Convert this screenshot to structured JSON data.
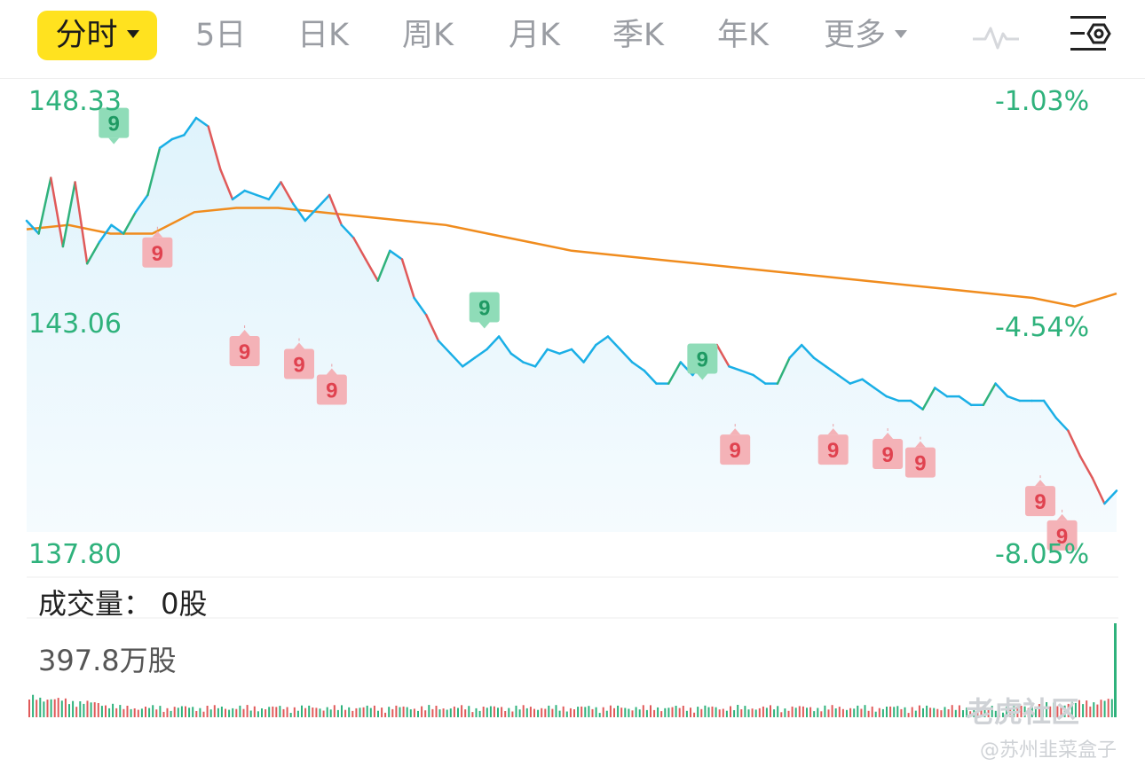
{
  "tabs": {
    "intraday": "分时",
    "five_day": "5日",
    "day_k": "日K",
    "week_k": "周K",
    "month_k": "月K",
    "season_k": "季K",
    "year_k": "年K",
    "more": "更多"
  },
  "icons": {
    "pulse": "pulse-icon",
    "settings": "settings-icon",
    "dropdown": "caret-down-icon"
  },
  "colors": {
    "accent": "#ffe21f",
    "price_line": "#1aafe6",
    "avg_line": "#f08c1e",
    "down": "#e05a5a",
    "up": "#2fb27c",
    "label": "#2fb27c"
  },
  "chart_data": {
    "type": "line",
    "price_axis": {
      "top": "148.33",
      "mid": "143.06",
      "bottom": "137.80",
      "ylim": [
        137.8,
        148.33
      ]
    },
    "pct_axis": {
      "top": "-1.03%",
      "mid": "-4.54%",
      "bottom": "-8.05%"
    },
    "series": [
      {
        "values": [
          145.6,
          145.3,
          146.6,
          145.0,
          146.5,
          144.6,
          145.1,
          145.5,
          145.3,
          145.8,
          146.2,
          147.3,
          147.5,
          147.6,
          148.0,
          147.8,
          146.8,
          146.1,
          146.3,
          146.2,
          146.1,
          146.5,
          146.0,
          145.6,
          145.9,
          146.2,
          145.5,
          145.2,
          144.7,
          144.2,
          144.9,
          144.7,
          143.8,
          143.4,
          142.8,
          142.5,
          142.2,
          142.4,
          142.6,
          142.9,
          142.5,
          142.3,
          142.2,
          142.6,
          142.5,
          142.6,
          142.3,
          142.7,
          142.9,
          142.6,
          142.3,
          142.1,
          141.8,
          141.8,
          142.3,
          142.0,
          142.4,
          142.7,
          142.2,
          142.1,
          142.0,
          141.8,
          141.8,
          142.4,
          142.7,
          142.4,
          142.2,
          142.0,
          141.8,
          141.9,
          141.7,
          141.5,
          141.4,
          141.4,
          141.2,
          141.7,
          141.5,
          141.5,
          141.3,
          141.3,
          141.8,
          141.5,
          141.4,
          141.4,
          141.4,
          141.0,
          140.7,
          140.1,
          139.6,
          139.0,
          139.3
        ]
      },
      {
        "values": [
          145.4,
          145.5,
          145.3,
          145.3,
          145.8,
          145.9,
          145.9,
          145.8,
          145.7,
          145.6,
          145.5,
          145.3,
          145.1,
          144.9,
          144.8,
          144.7,
          144.6,
          144.5,
          144.4,
          144.3,
          144.2,
          144.1,
          144.0,
          143.9,
          143.8,
          143.6,
          143.9
        ]
      }
    ],
    "signals": [
      {
        "label": "9",
        "kind": "up",
        "x": 0.08,
        "price": 147.2
      },
      {
        "label": "9",
        "kind": "down",
        "x": 0.12,
        "price": 145.5
      },
      {
        "label": "9",
        "kind": "down",
        "x": 0.2,
        "price": 143.2
      },
      {
        "label": "9",
        "kind": "down",
        "x": 0.25,
        "price": 142.9
      },
      {
        "label": "9",
        "kind": "down",
        "x": 0.28,
        "price": 142.3
      },
      {
        "label": "9",
        "kind": "up",
        "x": 0.42,
        "price": 142.9
      },
      {
        "label": "9",
        "kind": "up",
        "x": 0.62,
        "price": 141.7
      },
      {
        "label": "9",
        "kind": "down",
        "x": 0.65,
        "price": 140.9
      },
      {
        "label": "9",
        "kind": "down",
        "x": 0.74,
        "price": 140.9
      },
      {
        "label": "9",
        "kind": "down",
        "x": 0.79,
        "price": 140.8
      },
      {
        "label": "9",
        "kind": "down",
        "x": 0.82,
        "price": 140.6
      },
      {
        "label": "9",
        "kind": "down",
        "x": 0.93,
        "price": 139.7
      },
      {
        "label": "9",
        "kind": "down",
        "x": 0.95,
        "price": 138.9
      }
    ]
  },
  "volume": {
    "title": "成交量：  0股",
    "max_label": "397.8万股"
  },
  "watermark": {
    "brand": "老虎社区",
    "user": "@苏州韭菜盒子"
  }
}
